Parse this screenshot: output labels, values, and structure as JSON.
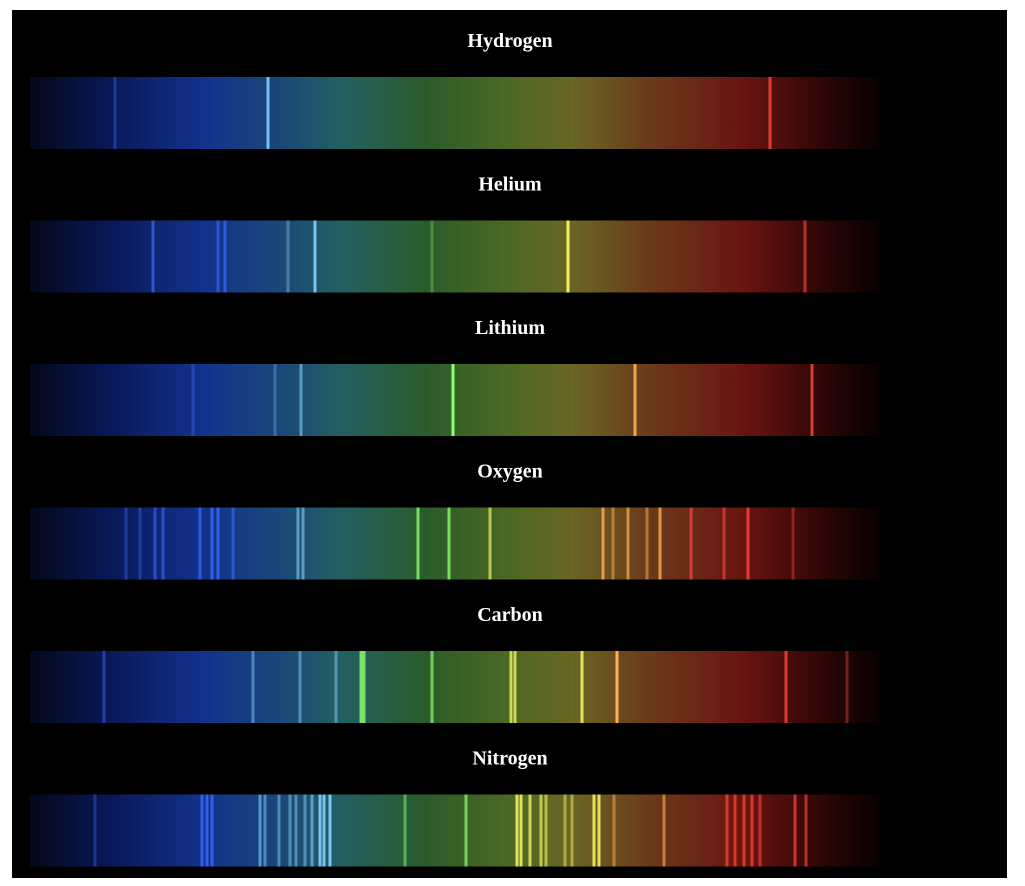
{
  "spectra": [
    {
      "label": "Hydrogen"
    },
    {
      "label": "Helium"
    },
    {
      "label": "Lithium"
    },
    {
      "label": "Oxygen"
    },
    {
      "label": "Carbon"
    },
    {
      "label": "Nitrogen"
    }
  ]
}
